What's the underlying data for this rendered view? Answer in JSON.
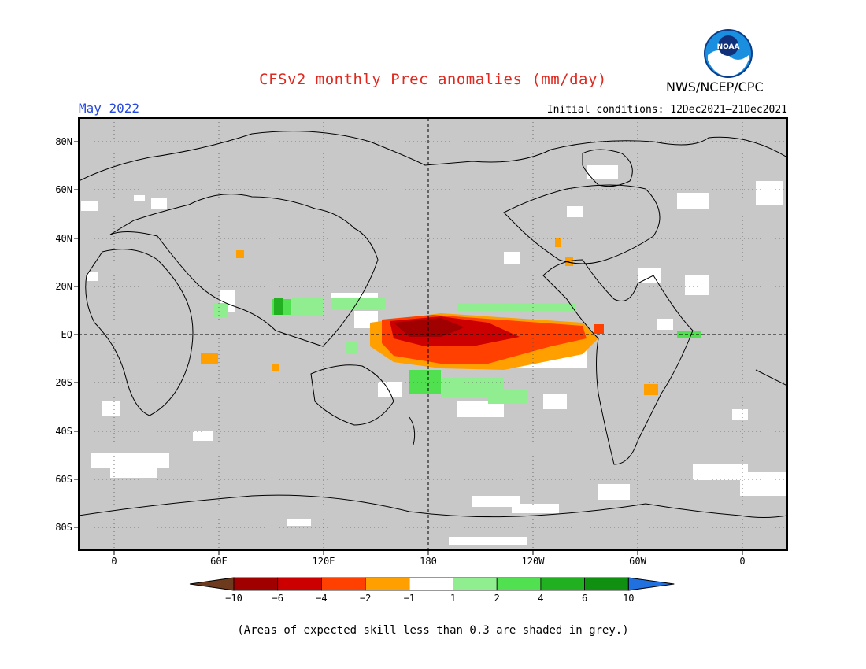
{
  "title": "CFSv2 monthly Prec anomalies (mm/day)",
  "organization": "NWS/NCEP/CPC",
  "logo_text": "NOAA",
  "forecast_month": "May 2022",
  "initial_conditions": "Initial conditions: 12Dec2021–21Dec2021",
  "map": {
    "lat_labels": [
      "80N",
      "60N",
      "40N",
      "20N",
      "EQ",
      "20S",
      "40S",
      "60S",
      "80S"
    ],
    "lon_labels": [
      "0",
      "60E",
      "120E",
      "180",
      "120W",
      "60W",
      "0"
    ],
    "background_color": "#c8c8c8",
    "grid": "dotted",
    "reference_lines": [
      "equator",
      "dateline"
    ]
  },
  "colorbar": {
    "tick_labels": [
      "-10",
      "-6",
      "-4",
      "-2",
      "-1",
      "1",
      "2",
      "4",
      "6",
      "10"
    ],
    "colors": [
      "#6e3a1e",
      "#a00000",
      "#cc0000",
      "#ff4000",
      "#ffa000",
      "#ffffff",
      "#90ee90",
      "#50e050",
      "#20b020",
      "#109010",
      "#2070e0"
    ]
  },
  "skill_note": "(Areas of expected skill less than 0.3 are shaded in grey.)"
}
